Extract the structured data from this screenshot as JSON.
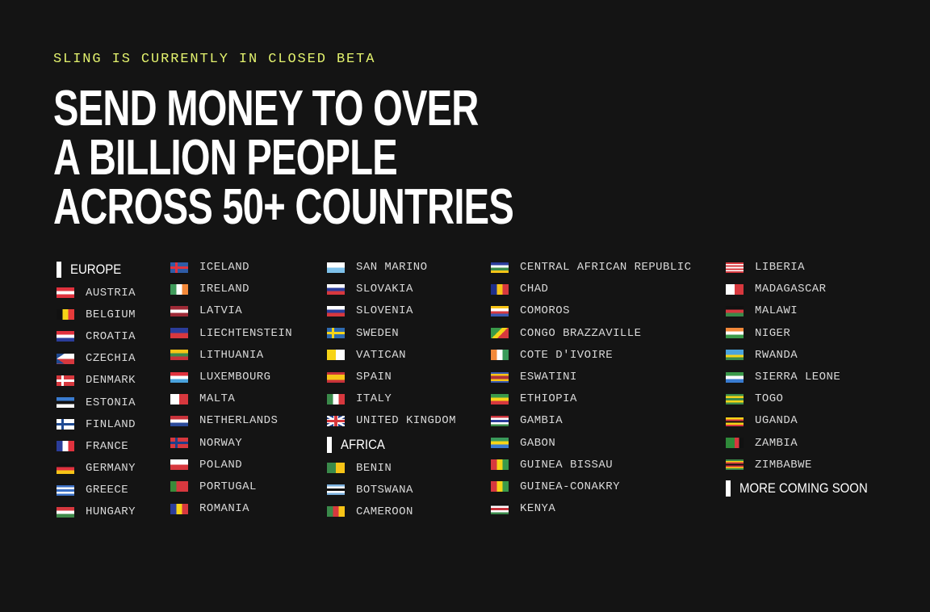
{
  "beta_notice": "SLING IS CURRENTLY IN CLOSED BETA",
  "headline": [
    "SEND MONEY TO OVER",
    "A BILLION PEOPLE",
    "ACROSS 50+ COUNTRIES"
  ],
  "accent_color": "#e3f26e",
  "columns": [
    [
      {
        "header": "EUROPE"
      },
      {
        "name": "AUSTRIA",
        "d": "h",
        "c": [
          "#e0323e",
          "#fff",
          "#e0323e"
        ]
      },
      {
        "name": "BELGIUM",
        "d": "v",
        "c": [
          "#111",
          "#f7d417",
          "#e63b3b"
        ]
      },
      {
        "name": "CROATIA",
        "d": "h",
        "c": [
          "#e0323e",
          "#fff",
          "#2b3d9a"
        ]
      },
      {
        "name": "CZECHIA",
        "d": "h",
        "c": [
          "#fff",
          "#d7383e"
        ],
        "tri": "#1f4a92"
      },
      {
        "name": "DENMARK",
        "d": "x",
        "c": [
          "#d7383e",
          "#fff"
        ]
      },
      {
        "name": "ESTONIA",
        "d": "h",
        "c": [
          "#3a7cd0",
          "#111",
          "#fff"
        ]
      },
      {
        "name": "FINLAND",
        "d": "x",
        "c": [
          "#fff",
          "#1f4a92"
        ]
      },
      {
        "name": "FRANCE",
        "d": "v",
        "c": [
          "#2b3d9a",
          "#fff",
          "#e0323e"
        ]
      },
      {
        "name": "GERMANY",
        "d": "h",
        "c": [
          "#111",
          "#e0323e",
          "#f7c417"
        ]
      },
      {
        "name": "GREECE",
        "d": "h",
        "c": [
          "#3a6fc4",
          "#fff",
          "#3a6fc4",
          "#fff",
          "#3a6fc4"
        ]
      },
      {
        "name": "HUNGARY",
        "d": "h",
        "c": [
          "#d7383e",
          "#fff",
          "#3f8a4a"
        ]
      }
    ],
    [
      {
        "name": "ICELAND",
        "d": "x",
        "c": [
          "#2f5ca6",
          "#e0323e"
        ]
      },
      {
        "name": "IRELAND",
        "d": "v",
        "c": [
          "#3f9a5a",
          "#fff",
          "#f3893a"
        ]
      },
      {
        "name": "LATVIA",
        "d": "h",
        "c": [
          "#9e2a36",
          "#fff",
          "#9e2a36"
        ]
      },
      {
        "name": "LIECHTENSTEIN",
        "d": "h",
        "c": [
          "#2b3d9a",
          "#d7383e"
        ]
      },
      {
        "name": "LITHUANIA",
        "d": "h",
        "c": [
          "#f7c417",
          "#3f8a4a",
          "#c8323a"
        ]
      },
      {
        "name": "LUXEMBOURG",
        "d": "h",
        "c": [
          "#e0323e",
          "#fff",
          "#4aa3dd"
        ]
      },
      {
        "name": "MALTA",
        "d": "v",
        "c": [
          "#fff",
          "#d7383e"
        ]
      },
      {
        "name": "NETHERLANDS",
        "d": "h",
        "c": [
          "#c8323a",
          "#fff",
          "#2b4a9a"
        ]
      },
      {
        "name": "NORWAY",
        "d": "x",
        "c": [
          "#d7383e",
          "#1f3f8a"
        ]
      },
      {
        "name": "POLAND",
        "d": "h",
        "c": [
          "#fff",
          "#d7383e"
        ]
      },
      {
        "name": "PORTUGAL",
        "d": "v",
        "c": [
          "#3a8a3a",
          "#d7383e",
          "#d7383e"
        ]
      },
      {
        "name": "ROMANIA",
        "d": "v",
        "c": [
          "#2b3d9a",
          "#f7d417",
          "#d7383e"
        ]
      }
    ],
    [
      {
        "name": "SAN MARINO",
        "d": "h",
        "c": [
          "#fff",
          "#7ec1ea"
        ]
      },
      {
        "name": "SLOVAKIA",
        "d": "h",
        "c": [
          "#fff",
          "#2b3d9a",
          "#d7383e"
        ]
      },
      {
        "name": "SLOVENIA",
        "d": "h",
        "c": [
          "#fff",
          "#2b3d9a",
          "#d7383e"
        ]
      },
      {
        "name": "SWEDEN",
        "d": "x",
        "c": [
          "#2f6bb0",
          "#f7d417"
        ]
      },
      {
        "name": "VATICAN",
        "d": "v",
        "c": [
          "#f7d417",
          "#fff"
        ]
      },
      {
        "name": "SPAIN",
        "d": "h",
        "c": [
          "#c8323a",
          "#f7c417",
          "#f7c417",
          "#c8323a"
        ]
      },
      {
        "name": "ITALY",
        "d": "v",
        "c": [
          "#3a8a4a",
          "#fff",
          "#d7383e"
        ]
      },
      {
        "name": "UNITED KINGDOM",
        "d": "uk",
        "c": [
          "#1f3f8a",
          "#fff",
          "#d7383e"
        ]
      },
      {
        "header": "AFRICA"
      },
      {
        "name": "BENIN",
        "d": "v",
        "c": [
          "#3a8a4a",
          "#f7c417"
        ]
      },
      {
        "name": "BOTSWANA",
        "d": "h",
        "c": [
          "#7ab0dd",
          "#fff",
          "#111",
          "#fff",
          "#7ab0dd"
        ]
      },
      {
        "name": "CAMEROON",
        "d": "v",
        "c": [
          "#3a8a4a",
          "#d7383e",
          "#f7c417"
        ]
      }
    ],
    [
      {
        "name": "CENTRAL AFRICAN REPUBLIC",
        "d": "h",
        "c": [
          "#2b3d9a",
          "#fff",
          "#3a8a4a",
          "#f7c417"
        ]
      },
      {
        "name": "CHAD",
        "d": "v",
        "c": [
          "#1f2f8a",
          "#f7c417",
          "#d7383e"
        ]
      },
      {
        "name": "COMOROS",
        "d": "h",
        "c": [
          "#f7c417",
          "#fff",
          "#d7383e",
          "#3a5ab0"
        ]
      },
      {
        "name": "CONGO BRAZZAVILLE",
        "d": "diag",
        "c": [
          "#3a9a4a",
          "#f7d417",
          "#d7383e"
        ]
      },
      {
        "name": "COTE D'IVOIRE",
        "d": "v",
        "c": [
          "#f3893a",
          "#fff",
          "#3a9a5a"
        ]
      },
      {
        "name": "ESWATINI",
        "d": "h",
        "c": [
          "#3a5ab0",
          "#f7c417",
          "#b0303a",
          "#b0303a",
          "#f7c417",
          "#3a5ab0"
        ]
      },
      {
        "name": "ETHIOPIA",
        "d": "h",
        "c": [
          "#3a9a4a",
          "#f7d417",
          "#d7383e"
        ]
      },
      {
        "name": "GAMBIA",
        "d": "h",
        "c": [
          "#c8323a",
          "#fff",
          "#2b3d9a",
          "#fff",
          "#3a8a4a"
        ]
      },
      {
        "name": "GABON",
        "d": "h",
        "c": [
          "#3a9a5a",
          "#f7d417",
          "#3a7cd0"
        ]
      },
      {
        "name": "GUINEA BISSAU",
        "d": "v",
        "c": [
          "#d7383e",
          "#f7d417",
          "#3a9a4a"
        ]
      },
      {
        "name": "GUINEA-CONAKRY",
        "d": "v",
        "c": [
          "#d7383e",
          "#f7d417",
          "#3a9a4a"
        ]
      },
      {
        "name": "KENYA",
        "d": "h",
        "c": [
          "#111",
          "#fff",
          "#c8323a",
          "#fff",
          "#3a8a4a"
        ]
      }
    ],
    [
      {
        "name": "LIBERIA",
        "d": "h",
        "c": [
          "#d7383e",
          "#fff",
          "#d7383e",
          "#fff",
          "#d7383e",
          "#fff",
          "#d7383e"
        ]
      },
      {
        "name": "MADAGASCAR",
        "d": "v",
        "c": [
          "#fff",
          "#d7383e"
        ]
      },
      {
        "name": "MALAWI",
        "d": "h",
        "c": [
          "#111",
          "#d7383e",
          "#3a8a4a"
        ]
      },
      {
        "name": "NIGER",
        "d": "h",
        "c": [
          "#f3893a",
          "#fff",
          "#3a9a4a"
        ]
      },
      {
        "name": "RWANDA",
        "d": "h",
        "c": [
          "#4aa3dd",
          "#4aa3dd",
          "#f7d417",
          "#3a8a4a"
        ]
      },
      {
        "name": "SIERRA LEONE",
        "d": "h",
        "c": [
          "#3a9a4a",
          "#fff",
          "#3a7cd0"
        ]
      },
      {
        "name": "TOGO",
        "d": "h",
        "c": [
          "#3a8a4a",
          "#f7d417",
          "#3a8a4a",
          "#f7d417",
          "#3a8a4a"
        ]
      },
      {
        "name": "UGANDA",
        "d": "h",
        "c": [
          "#111",
          "#f7d417",
          "#d7383e",
          "#111",
          "#f7d417",
          "#d7383e"
        ]
      },
      {
        "name": "ZAMBIA",
        "d": "v",
        "c": [
          "#2f8a3a",
          "#2f8a3a",
          "#d7383e",
          "#111"
        ]
      },
      {
        "name": "ZIMBABWE",
        "d": "h",
        "c": [
          "#3a8a4a",
          "#f7d417",
          "#d7383e",
          "#111",
          "#d7383e",
          "#f7d417",
          "#3a8a4a"
        ]
      },
      {
        "header": "MORE COMING SOON"
      }
    ]
  ]
}
